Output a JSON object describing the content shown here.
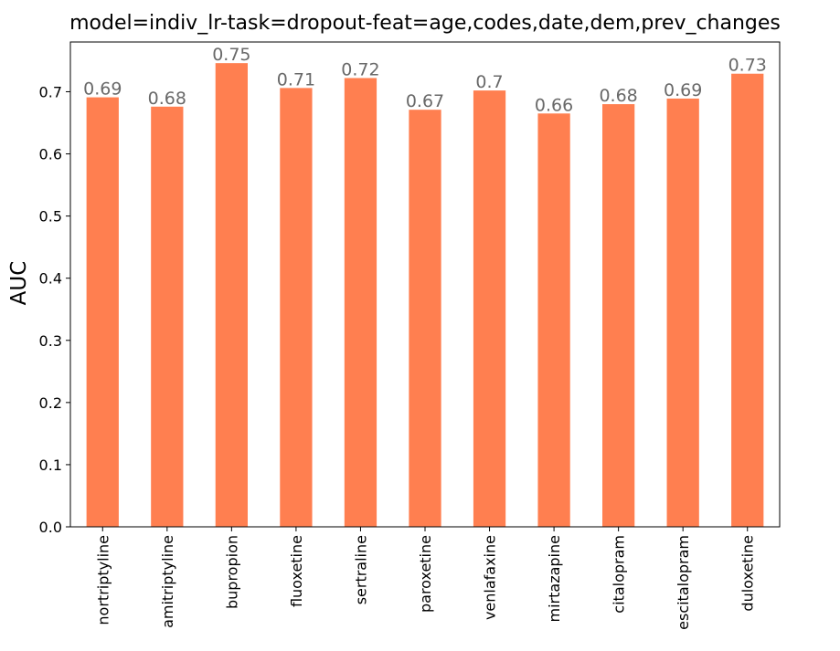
{
  "chart_data": {
    "type": "bar",
    "title": "model=indiv_lr-task=dropout-feat=age,codes,date,dem,prev_changes",
    "xlabel": "",
    "ylabel": "AUC",
    "categories": [
      "nortriptyline",
      "amitriptyline",
      "bupropion",
      "fluoxetine",
      "sertraline",
      "paroxetine",
      "venlafaxine",
      "mirtazapine",
      "citalopram",
      "escitalopram",
      "duloxetine"
    ],
    "values": [
      0.691,
      0.676,
      0.746,
      0.706,
      0.722,
      0.671,
      0.702,
      0.665,
      0.68,
      0.689,
      0.729
    ],
    "value_labels": [
      "0.69",
      "0.68",
      "0.75",
      "0.71",
      "0.72",
      "0.67",
      "0.7",
      "0.66",
      "0.68",
      "0.69",
      "0.73"
    ],
    "ylim": [
      0,
      0.78
    ],
    "yticks": [
      0.0,
      0.1,
      0.2,
      0.3,
      0.4,
      0.5,
      0.6,
      0.7
    ],
    "ytick_labels": [
      "0.0",
      "0.1",
      "0.2",
      "0.3",
      "0.4",
      "0.5",
      "0.6",
      "0.7"
    ],
    "grid": false,
    "legend": "none",
    "colors": {
      "bar": "#ff7f50",
      "value_label": "#696969",
      "axis": "#000000",
      "background": "#ffffff"
    }
  }
}
